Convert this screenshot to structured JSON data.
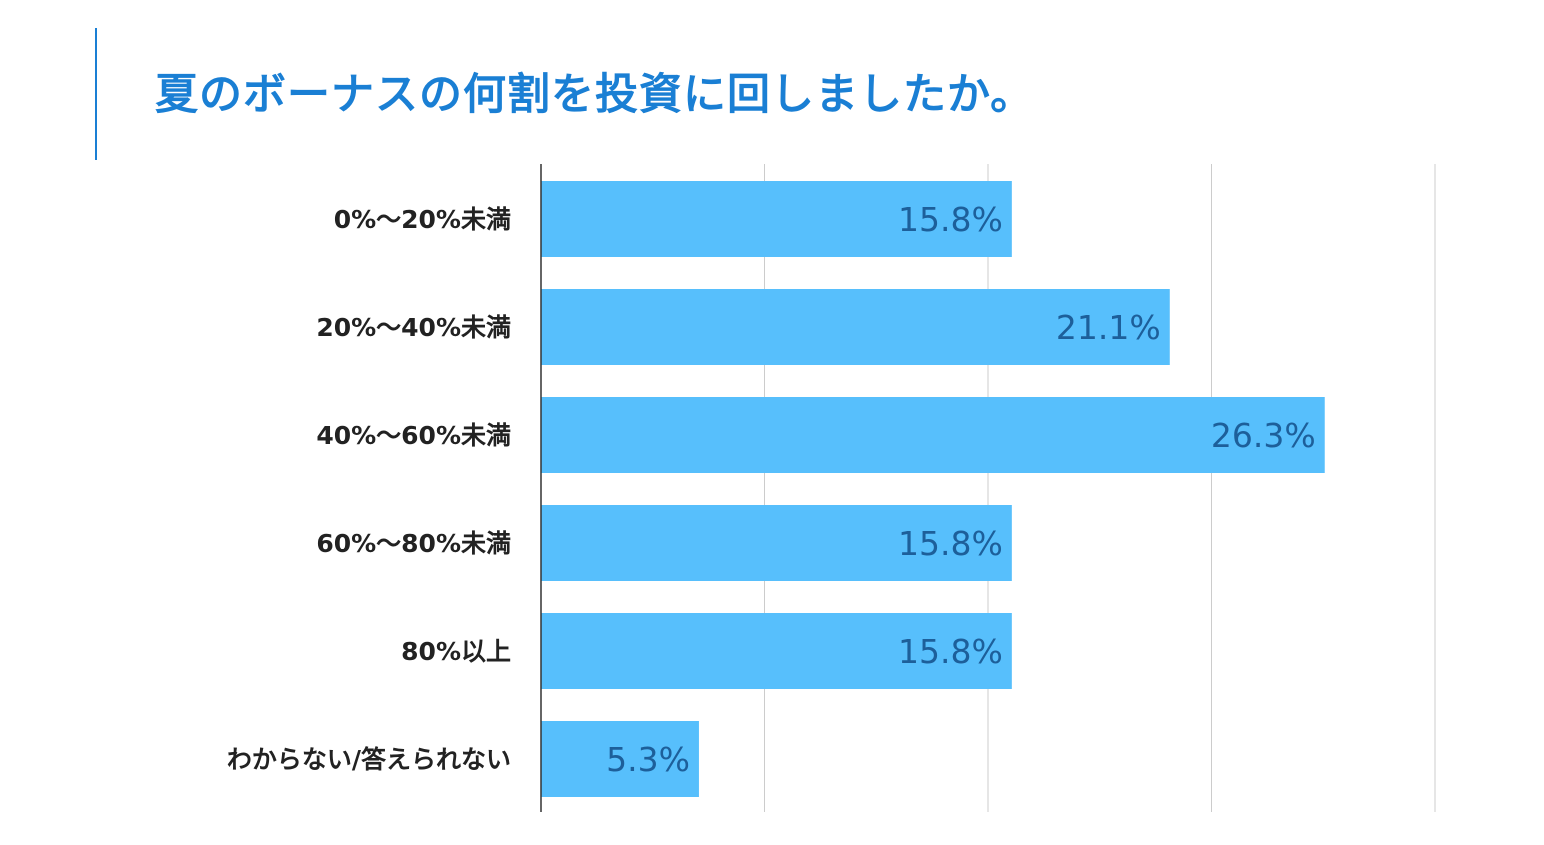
{
  "title": "夏のボーナスの何割を投資に回しましたか。",
  "colors": {
    "accent": "#1a7fd4",
    "bar": "#57bffc",
    "value_text": "#1d5f9a",
    "grid": "#cccccc",
    "axis": "#333333"
  },
  "chart_data": {
    "type": "bar",
    "orientation": "horizontal",
    "title": "夏のボーナスの何割を投資に回しましたか。",
    "categories": [
      "0%〜20%未満",
      "20%〜40%未満",
      "40%〜60%未満",
      "60%〜80%未満",
      "80%以上",
      "わからない/答えられない"
    ],
    "values": [
      15.8,
      21.1,
      26.3,
      15.8,
      15.8,
      5.3
    ],
    "value_labels": [
      "15.8%",
      "21.1%",
      "26.3%",
      "15.8%",
      "15.8%",
      "5.3%"
    ],
    "xlim": [
      0,
      30
    ],
    "grid_step": 7.5,
    "grid": true,
    "xlabel": "",
    "ylabel": ""
  }
}
